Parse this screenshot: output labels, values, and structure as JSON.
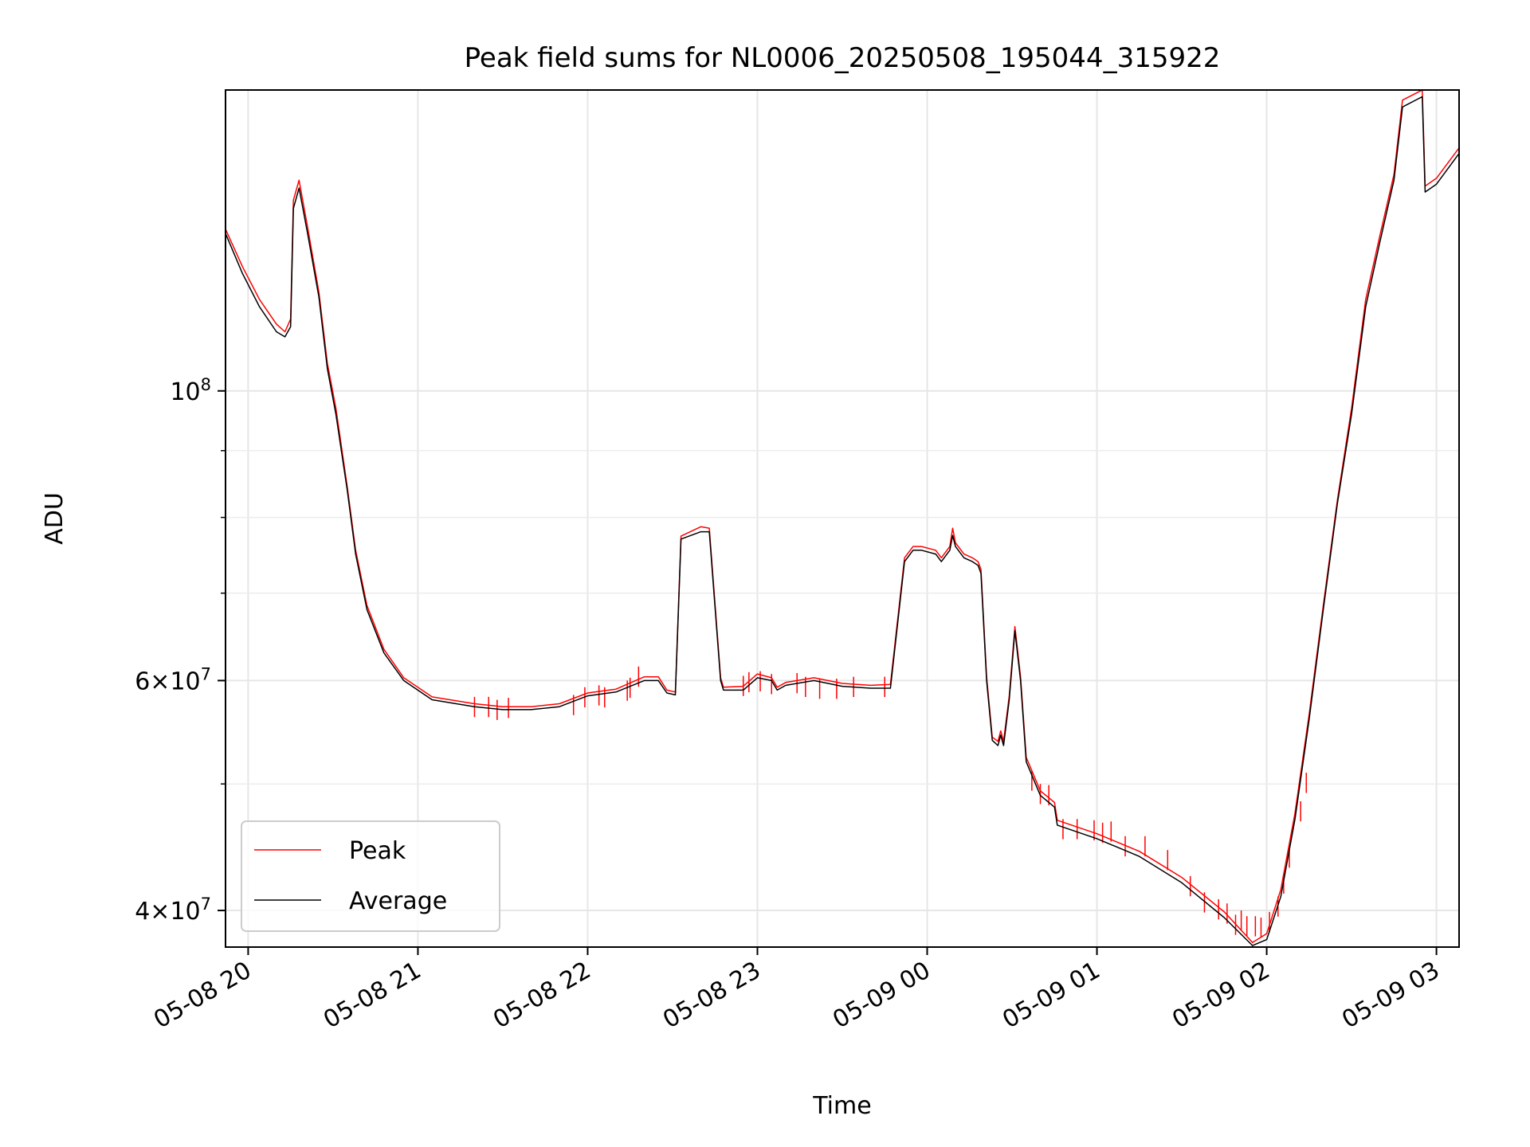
{
  "chart_data": {
    "type": "line",
    "title": "Peak field sums for NL0006_20250508_195044_315922",
    "xlabel": "Time",
    "ylabel": "ADU",
    "x_axis": {
      "type": "time",
      "range": [
        "2025-05-08 19:52",
        "2025-05-09 03:08"
      ],
      "ticks": [
        {
          "value": "2025-05-08 20:00",
          "label": "05-08 20"
        },
        {
          "value": "2025-05-08 21:00",
          "label": "05-08 21"
        },
        {
          "value": "2025-05-08 22:00",
          "label": "05-08 22"
        },
        {
          "value": "2025-05-08 23:00",
          "label": "05-08 23"
        },
        {
          "value": "2025-05-09 00:00",
          "label": "05-09 00"
        },
        {
          "value": "2025-05-09 01:00",
          "label": "05-09 01"
        },
        {
          "value": "2025-05-09 02:00",
          "label": "05-09 02"
        },
        {
          "value": "2025-05-09 03:00",
          "label": "05-09 03"
        }
      ]
    },
    "y_axis": {
      "scale": "log",
      "range": [
        37500000,
        170000000
      ],
      "major_ticks": [
        {
          "value": 100000000,
          "base": "10",
          "exp": "8"
        },
        {
          "value": 60000000,
          "base": "6×10",
          "exp": "7"
        },
        {
          "value": 40000000,
          "base": "4×10",
          "exp": "7"
        }
      ],
      "minor_ticks": [
        50000000,
        70000000,
        80000000,
        90000000
      ]
    },
    "grid": true,
    "legend": {
      "position": "lower-left",
      "entries": [
        "Peak",
        "Average"
      ]
    },
    "series": [
      {
        "name": "Average",
        "color": "#000000",
        "points": [
          [
            "2025-05-08 19:52",
            132000000
          ],
          [
            "2025-05-08 19:58",
            123000000
          ],
          [
            "2025-05-08 20:04",
            116000000
          ],
          [
            "2025-05-08 20:10",
            111000000
          ],
          [
            "2025-05-08 20:13",
            110000000
          ],
          [
            "2025-05-08 20:15",
            112000000
          ],
          [
            "2025-05-08 20:16",
            138000000
          ],
          [
            "2025-05-08 20:18",
            143000000
          ],
          [
            "2025-05-08 20:21",
            132000000
          ],
          [
            "2025-05-08 20:25",
            118000000
          ],
          [
            "2025-05-08 20:28",
            104000000
          ],
          [
            "2025-05-08 20:31",
            96000000
          ],
          [
            "2025-05-08 20:35",
            84000000
          ],
          [
            "2025-05-08 20:38",
            75000000
          ],
          [
            "2025-05-08 20:42",
            68000000
          ],
          [
            "2025-05-08 20:48",
            63000000
          ],
          [
            "2025-05-08 20:55",
            60000000
          ],
          [
            "2025-05-08 21:05",
            58000000
          ],
          [
            "2025-05-08 21:20",
            57300000
          ],
          [
            "2025-05-08 21:30",
            57000000
          ],
          [
            "2025-05-08 21:40",
            57000000
          ],
          [
            "2025-05-08 21:50",
            57300000
          ],
          [
            "2025-05-08 22:00",
            58400000
          ],
          [
            "2025-05-08 22:10",
            58800000
          ],
          [
            "2025-05-08 22:20",
            60000000
          ],
          [
            "2025-05-08 22:25",
            60000000
          ],
          [
            "2025-05-08 22:28",
            58700000
          ],
          [
            "2025-05-08 22:31",
            58500000
          ],
          [
            "2025-05-08 22:33",
            77000000
          ],
          [
            "2025-05-08 22:40",
            78000000
          ],
          [
            "2025-05-08 22:43",
            78000000
          ],
          [
            "2025-05-08 22:47",
            60000000
          ],
          [
            "2025-05-08 22:48",
            59000000
          ],
          [
            "2025-05-08 22:55",
            59000000
          ],
          [
            "2025-05-08 23:00",
            60300000
          ],
          [
            "2025-05-08 23:05",
            60000000
          ],
          [
            "2025-05-08 23:07",
            59000000
          ],
          [
            "2025-05-08 23:10",
            59500000
          ],
          [
            "2025-05-08 23:20",
            60000000
          ],
          [
            "2025-05-08 23:30",
            59400000
          ],
          [
            "2025-05-08 23:40",
            59200000
          ],
          [
            "2025-05-08 23:47",
            59200000
          ],
          [
            "2025-05-08 23:52",
            74000000
          ],
          [
            "2025-05-08 23:55",
            75500000
          ],
          [
            "2025-05-08 23:58",
            75500000
          ],
          [
            "2025-05-09 00:03",
            75000000
          ],
          [
            "2025-05-09 00:05",
            74000000
          ],
          [
            "2025-05-09 00:08",
            75500000
          ],
          [
            "2025-05-09 00:09",
            77500000
          ],
          [
            "2025-05-09 00:10",
            76000000
          ],
          [
            "2025-05-09 00:13",
            74500000
          ],
          [
            "2025-05-09 00:16",
            74000000
          ],
          [
            "2025-05-09 00:18",
            73500000
          ],
          [
            "2025-05-09 00:19",
            72500000
          ],
          [
            "2025-05-09 00:21",
            60000000
          ],
          [
            "2025-05-09 00:23",
            54000000
          ],
          [
            "2025-05-09 00:25",
            53500000
          ],
          [
            "2025-05-09 00:26",
            54500000
          ],
          [
            "2025-05-09 00:27",
            53500000
          ],
          [
            "2025-05-09 00:29",
            58000000
          ],
          [
            "2025-05-09 00:31",
            65500000
          ],
          [
            "2025-05-09 00:33",
            60000000
          ],
          [
            "2025-05-09 00:35",
            52000000
          ],
          [
            "2025-05-09 00:40",
            49000000
          ],
          [
            "2025-05-09 00:45",
            48000000
          ],
          [
            "2025-05-09 00:46",
            46500000
          ],
          [
            "2025-05-09 01:00",
            45400000
          ],
          [
            "2025-05-09 01:15",
            44000000
          ],
          [
            "2025-05-09 01:30",
            42000000
          ],
          [
            "2025-05-09 01:45",
            39500000
          ],
          [
            "2025-05-09 01:55",
            37600000
          ],
          [
            "2025-05-09 02:00",
            38000000
          ],
          [
            "2025-05-09 02:05",
            41000000
          ],
          [
            "2025-05-09 02:10",
            47000000
          ],
          [
            "2025-05-09 02:15",
            56000000
          ],
          [
            "2025-05-09 02:20",
            68000000
          ],
          [
            "2025-05-09 02:25",
            82000000
          ],
          [
            "2025-05-09 02:30",
            96000000
          ],
          [
            "2025-05-09 02:35",
            116000000
          ],
          [
            "2025-05-09 02:40",
            130000000
          ],
          [
            "2025-05-09 02:45",
            145000000
          ],
          [
            "2025-05-09 02:48",
            165000000
          ],
          [
            "2025-05-09 02:55",
            168000000
          ],
          [
            "2025-05-09 02:56",
            142000000
          ],
          [
            "2025-05-09 03:00",
            144000000
          ],
          [
            "2025-05-09 03:08",
            152000000
          ]
        ]
      },
      {
        "name": "Peak",
        "color": "#ff0000",
        "points": [
          [
            "2025-05-08 19:52",
            133000000
          ],
          [
            "2025-05-08 19:58",
            124500000
          ],
          [
            "2025-05-08 20:04",
            117500000
          ],
          [
            "2025-05-08 20:10",
            112500000
          ],
          [
            "2025-05-08 20:13",
            111000000
          ],
          [
            "2025-05-08 20:15",
            113500000
          ],
          [
            "2025-05-08 20:16",
            140000000
          ],
          [
            "2025-05-08 20:18",
            145000000
          ],
          [
            "2025-05-08 20:21",
            133500000
          ],
          [
            "2025-05-08 20:25",
            119000000
          ],
          [
            "2025-05-08 20:28",
            105000000
          ],
          [
            "2025-05-08 20:31",
            97000000
          ],
          [
            "2025-05-08 20:35",
            84500000
          ],
          [
            "2025-05-08 20:38",
            75500000
          ],
          [
            "2025-05-08 20:42",
            68500000
          ],
          [
            "2025-05-08 20:48",
            63400000
          ],
          [
            "2025-05-08 20:55",
            60300000
          ],
          [
            "2025-05-08 21:05",
            58300000
          ],
          [
            "2025-05-08 21:20",
            57600000
          ],
          [
            "2025-05-08 21:30",
            57300000
          ],
          [
            "2025-05-08 21:40",
            57300000
          ],
          [
            "2025-05-08 21:50",
            57600000
          ],
          [
            "2025-05-08 22:00",
            58700000
          ],
          [
            "2025-05-08 22:10",
            59100000
          ],
          [
            "2025-05-08 22:20",
            60400000
          ],
          [
            "2025-05-08 22:25",
            60400000
          ],
          [
            "2025-05-08 22:28",
            59000000
          ],
          [
            "2025-05-08 22:31",
            58800000
          ],
          [
            "2025-05-08 22:33",
            77400000
          ],
          [
            "2025-05-08 22:40",
            78700000
          ],
          [
            "2025-05-08 22:43",
            78500000
          ],
          [
            "2025-05-08 22:47",
            60300000
          ],
          [
            "2025-05-08 22:48",
            59300000
          ],
          [
            "2025-05-08 22:55",
            59400000
          ],
          [
            "2025-05-08 23:00",
            60700000
          ],
          [
            "2025-05-08 23:05",
            60300000
          ],
          [
            "2025-05-08 23:07",
            59300000
          ],
          [
            "2025-05-08 23:10",
            59800000
          ],
          [
            "2025-05-08 23:20",
            60300000
          ],
          [
            "2025-05-08 23:30",
            59700000
          ],
          [
            "2025-05-08 23:40",
            59500000
          ],
          [
            "2025-05-08 23:47",
            59600000
          ],
          [
            "2025-05-08 23:52",
            74500000
          ],
          [
            "2025-05-08 23:55",
            76000000
          ],
          [
            "2025-05-08 23:58",
            76000000
          ],
          [
            "2025-05-09 00:03",
            75500000
          ],
          [
            "2025-05-09 00:05",
            74500000
          ],
          [
            "2025-05-09 00:08",
            76000000
          ],
          [
            "2025-05-09 00:09",
            78500000
          ],
          [
            "2025-05-09 00:10",
            76500000
          ],
          [
            "2025-05-09 00:13",
            75000000
          ],
          [
            "2025-05-09 00:16",
            74500000
          ],
          [
            "2025-05-09 00:18",
            74000000
          ],
          [
            "2025-05-09 00:19",
            73000000
          ],
          [
            "2025-05-09 00:21",
            60400000
          ],
          [
            "2025-05-09 00:23",
            54300000
          ],
          [
            "2025-05-09 00:25",
            53900000
          ],
          [
            "2025-05-09 00:26",
            54900000
          ],
          [
            "2025-05-09 00:27",
            53900000
          ],
          [
            "2025-05-09 00:29",
            58400000
          ],
          [
            "2025-05-09 00:31",
            66000000
          ],
          [
            "2025-05-09 00:33",
            60400000
          ],
          [
            "2025-05-09 00:35",
            52400000
          ],
          [
            "2025-05-09 00:40",
            49400000
          ],
          [
            "2025-05-09 00:45",
            48400000
          ],
          [
            "2025-05-09 00:46",
            46900000
          ],
          [
            "2025-05-09 01:00",
            45800000
          ],
          [
            "2025-05-09 01:15",
            44400000
          ],
          [
            "2025-05-09 01:30",
            42400000
          ],
          [
            "2025-05-09 01:45",
            39900000
          ],
          [
            "2025-05-09 01:55",
            37800000
          ],
          [
            "2025-05-09 02:00",
            38400000
          ],
          [
            "2025-05-09 02:05",
            41500000
          ],
          [
            "2025-05-09 02:10",
            47500000
          ],
          [
            "2025-05-09 02:15",
            56500000
          ],
          [
            "2025-05-09 02:20",
            68500000
          ],
          [
            "2025-05-09 02:25",
            82500000
          ],
          [
            "2025-05-09 02:30",
            97000000
          ],
          [
            "2025-05-09 02:35",
            117500000
          ],
          [
            "2025-05-09 02:40",
            131500000
          ],
          [
            "2025-05-09 02:45",
            146500000
          ],
          [
            "2025-05-09 02:48",
            167000000
          ],
          [
            "2025-05-09 02:55",
            170000000
          ],
          [
            "2025-05-09 02:56",
            143500000
          ],
          [
            "2025-05-09 03:00",
            145500000
          ],
          [
            "2025-05-09 03:08",
            153500000
          ]
        ],
        "spikes": [
          [
            "2025-05-08 21:20",
            58300000
          ],
          [
            "2025-05-08 21:25",
            58300000
          ],
          [
            "2025-05-08 21:28",
            58000000
          ],
          [
            "2025-05-08 21:32",
            58200000
          ],
          [
            "2025-05-08 21:55",
            58500000
          ],
          [
            "2025-05-08 21:59",
            59300000
          ],
          [
            "2025-05-08 22:04",
            59500000
          ],
          [
            "2025-05-08 22:06",
            59300000
          ],
          [
            "2025-05-08 22:14",
            60000000
          ],
          [
            "2025-05-08 22:15",
            60300000
          ],
          [
            "2025-05-08 22:18",
            61500000
          ],
          [
            "2025-05-08 22:55",
            60500000
          ],
          [
            "2025-05-08 22:57",
            60900000
          ],
          [
            "2025-05-08 23:01",
            61000000
          ],
          [
            "2025-05-08 23:05",
            60700000
          ],
          [
            "2025-05-08 23:14",
            60800000
          ],
          [
            "2025-05-08 23:17",
            60400000
          ],
          [
            "2025-05-08 23:22",
            60200000
          ],
          [
            "2025-05-08 23:28",
            60200000
          ],
          [
            "2025-05-08 23:34",
            60400000
          ],
          [
            "2025-05-08 23:45",
            60400000
          ],
          [
            "2025-05-09 00:37",
            51200000
          ],
          [
            "2025-05-09 00:40",
            50000000
          ],
          [
            "2025-05-09 00:43",
            49900000
          ],
          [
            "2025-05-09 00:48",
            47000000
          ],
          [
            "2025-05-09 00:53",
            47000000
          ],
          [
            "2025-05-09 00:59",
            46900000
          ],
          [
            "2025-05-09 01:02",
            46700000
          ],
          [
            "2025-05-09 01:05",
            46800000
          ],
          [
            "2025-05-09 01:10",
            45600000
          ],
          [
            "2025-05-09 01:17",
            45600000
          ],
          [
            "2025-05-09 01:25",
            44500000
          ],
          [
            "2025-05-09 01:33",
            42500000
          ],
          [
            "2025-05-09 01:38",
            41300000
          ],
          [
            "2025-05-09 01:43",
            40800000
          ],
          [
            "2025-05-09 01:46",
            40500000
          ],
          [
            "2025-05-09 01:49",
            39700000
          ],
          [
            "2025-05-09 01:51",
            40000000
          ],
          [
            "2025-05-09 01:53",
            39600000
          ],
          [
            "2025-05-09 01:56",
            39600000
          ],
          [
            "2025-05-09 01:58",
            39500000
          ],
          [
            "2025-05-09 02:01",
            39900000
          ],
          [
            "2025-05-09 02:04",
            41000000
          ],
          [
            "2025-05-09 02:06",
            42700000
          ],
          [
            "2025-05-09 02:08",
            44700000
          ],
          [
            "2025-05-09 02:12",
            48500000
          ],
          [
            "2025-05-09 02:14",
            51000000
          ]
        ]
      }
    ]
  }
}
